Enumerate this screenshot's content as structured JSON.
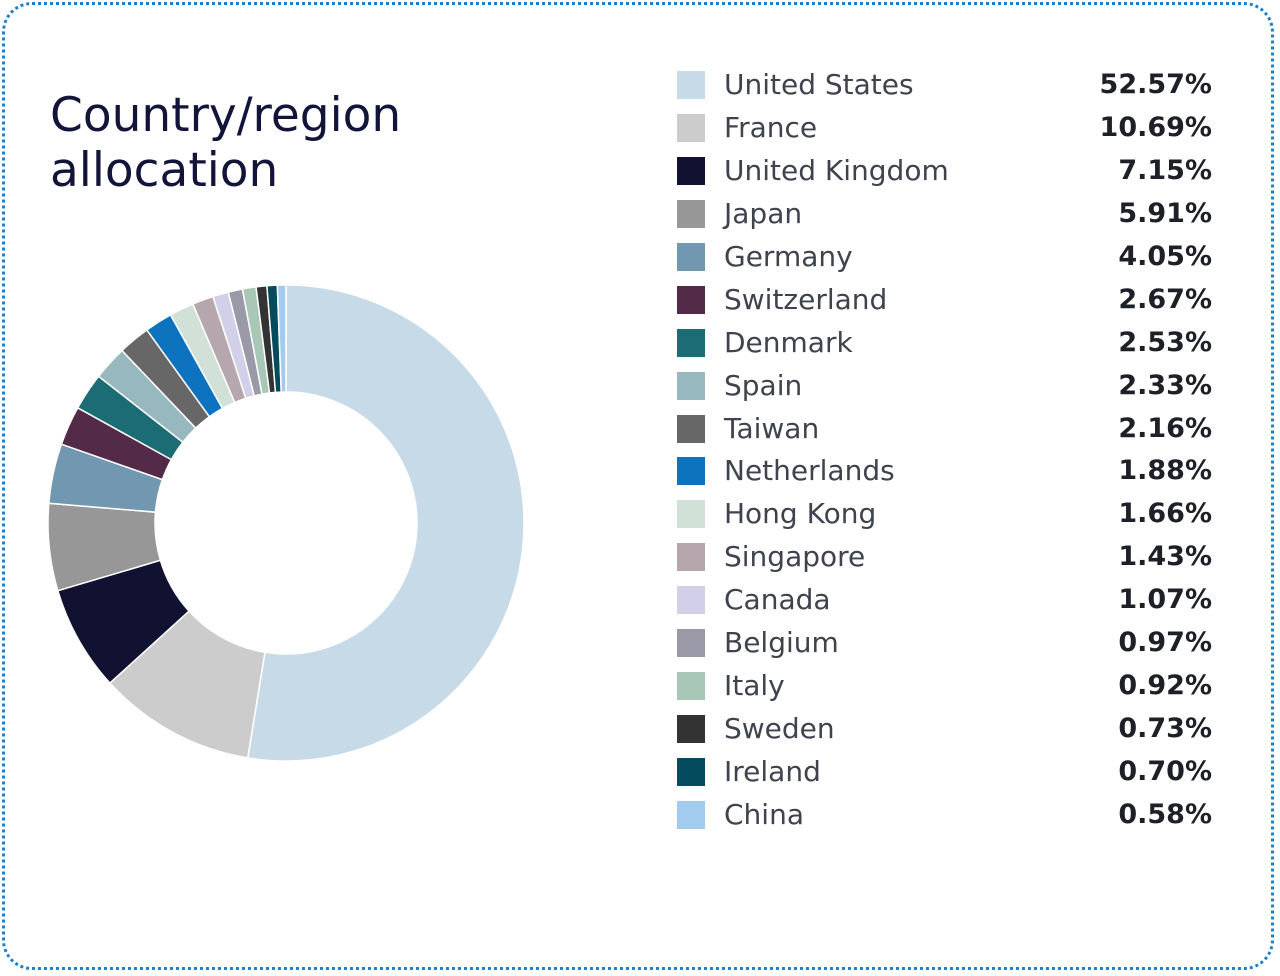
{
  "chart_data": {
    "type": "pie",
    "title": "Country/region allocation",
    "unit": "%",
    "categories": [
      "United States",
      "France",
      "United Kingdom",
      "Japan",
      "Germany",
      "Switzerland",
      "Denmark",
      "Spain",
      "Taiwan",
      "Netherlands",
      "Hong Kong",
      "Singapore",
      "Canada",
      "Belgium",
      "Italy",
      "Sweden",
      "Ireland",
      "China"
    ],
    "values": [
      52.57,
      10.69,
      7.15,
      5.91,
      4.05,
      2.67,
      2.53,
      2.33,
      2.16,
      1.88,
      1.66,
      1.43,
      1.07,
      0.97,
      0.92,
      0.73,
      0.7,
      0.58
    ],
    "labels": [
      "52.57%",
      "10.69%",
      "7.15%",
      "5.91%",
      "4.05%",
      "2.67%",
      "2.53%",
      "2.33%",
      "2.16%",
      "1.88%",
      "1.66%",
      "1.43%",
      "1.07%",
      "0.97%",
      "0.92%",
      "0.73%",
      "0.70%",
      "0.58%"
    ],
    "colors": [
      "#c7dae8",
      "#cccccc",
      "#111132",
      "#979797",
      "#7297b0",
      "#532a48",
      "#1b6c75",
      "#97b8bf",
      "#676767",
      "#0d73bf",
      "#d1e1d8",
      "#b6a6ae",
      "#d2d0e9",
      "#9a99a7",
      "#a8c7b6",
      "#333333",
      "#044b5e",
      "#a3cbed"
    ],
    "legend_position": "right",
    "donut": true
  }
}
